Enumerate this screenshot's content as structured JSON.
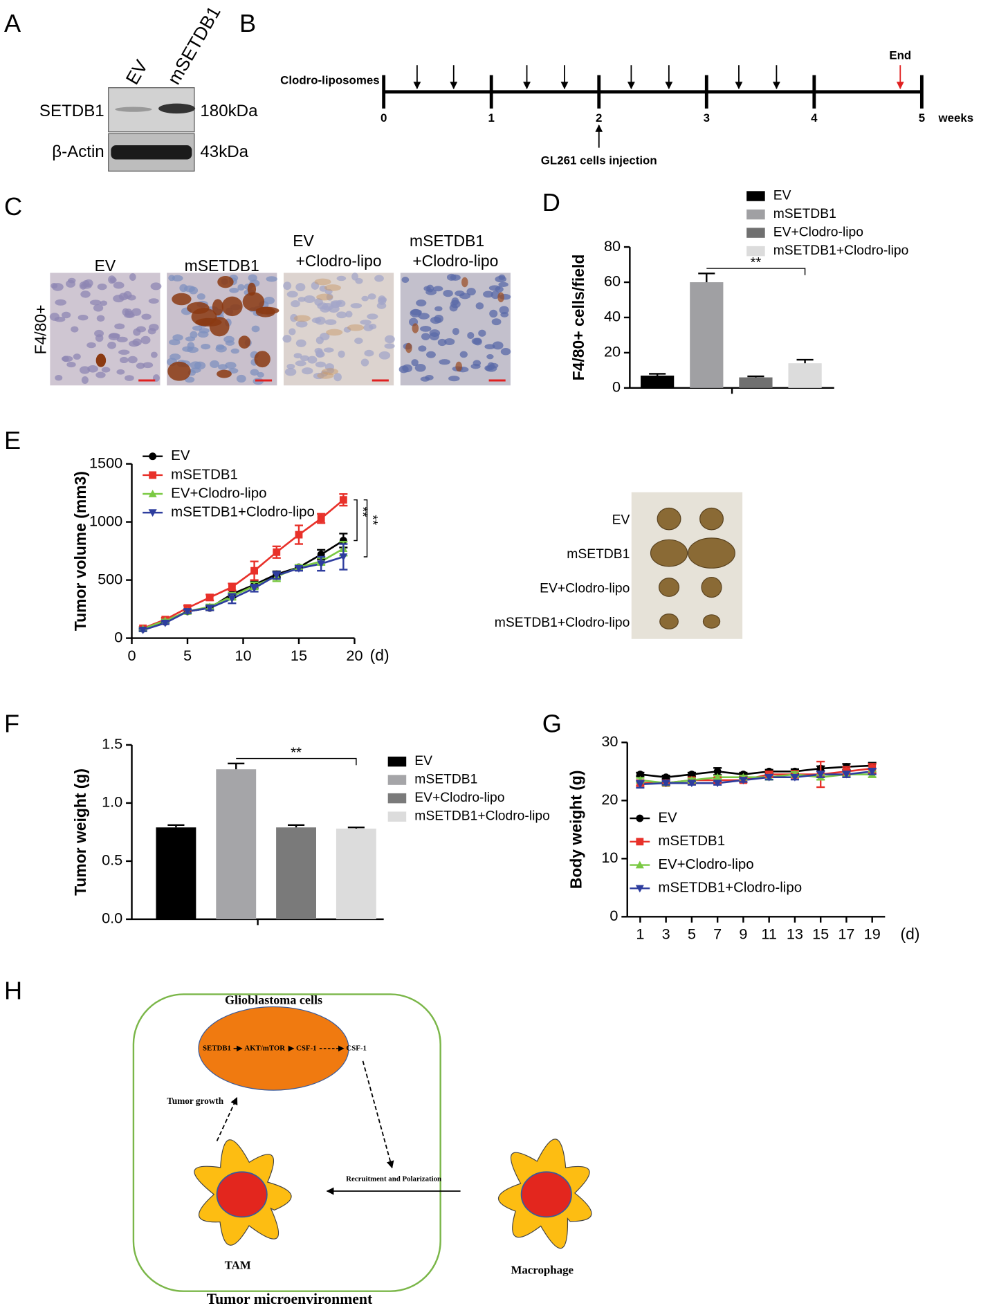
{
  "panel_letters": [
    "A",
    "B",
    "C",
    "D",
    "E",
    "F",
    "G",
    "H"
  ],
  "panel_a": {
    "lanes": [
      "EV",
      "mSETDB1"
    ],
    "rows": [
      {
        "protein": "SETDB1",
        "size": "180kDa"
      },
      {
        "protein": "β-Actin",
        "size": "43kDa"
      }
    ]
  },
  "panel_b": {
    "label": "Clodro-liposomes",
    "ticks": [
      0,
      1,
      2,
      3,
      4,
      5
    ],
    "unit": "weeks",
    "end": "End",
    "end_at": 4.8,
    "injection": "GL261 cells injection",
    "injection_at": 2,
    "doses": [
      0.31,
      0.65,
      1.33,
      1.68,
      2.3,
      2.65,
      3.3,
      3.65
    ]
  },
  "panel_c": {
    "row_label": "F4/80+",
    "columns": [
      [
        "EV"
      ],
      [
        "mSETDB1"
      ],
      [
        "EV",
        "+Clodro-lipo"
      ],
      [
        "mSETDB1",
        "+Clodro-lipo"
      ]
    ]
  },
  "chart_data": [
    {
      "type": "bar",
      "ylabel": "F4/80+ cells/field",
      "ylim": [
        0,
        80
      ],
      "yticks": [
        0,
        20,
        40,
        60,
        80
      ],
      "legend": "top right",
      "annotation": "**",
      "series": [
        {
          "name": "EV",
          "color": "#000000",
          "values": [
            7
          ],
          "errors": [
            1
          ]
        },
        {
          "name": "mSETDB1",
          "color": "#a0a0a3",
          "values": [
            60
          ],
          "errors": [
            5
          ]
        },
        {
          "name": "EV+Clodro-lipo",
          "color": "#707070",
          "values": [
            6
          ],
          "errors": [
            0.6
          ]
        },
        {
          "name": "mSETDB1+Clodro-lipo",
          "color": "#dcdcdc",
          "values": [
            14
          ],
          "errors": [
            2
          ]
        }
      ]
    },
    {
      "type": "line",
      "ylabel": "Tumor volume (mm3)",
      "xlabel": "(d)",
      "x": [
        1,
        3,
        5,
        7,
        9,
        11,
        13,
        15,
        17,
        19
      ],
      "xlim": [
        0,
        20
      ],
      "xticks": [
        0,
        5,
        10,
        15,
        20
      ],
      "ylim": [
        0,
        1500
      ],
      "yticks": [
        0,
        500,
        1000,
        1500
      ],
      "legend": "upper left",
      "annotations": [
        "**",
        "**"
      ],
      "series": [
        {
          "name": "EV",
          "color": "#000000",
          "marker": "circle",
          "values": [
            80,
            140,
            230,
            260,
            380,
            460,
            550,
            610,
            720,
            840
          ],
          "errors": [
            10,
            10,
            15,
            20,
            30,
            30,
            25,
            20,
            40,
            60
          ]
        },
        {
          "name": "mSETDB1",
          "color": "#e8312a",
          "marker": "square",
          "values": [
            85,
            160,
            260,
            350,
            440,
            580,
            740,
            890,
            1030,
            1190
          ],
          "errors": [
            10,
            15,
            20,
            25,
            30,
            80,
            50,
            80,
            40,
            50
          ]
        },
        {
          "name": "EV+Clodro-lipo",
          "color": "#7ac943",
          "marker": "triangle-up",
          "values": [
            80,
            150,
            230,
            270,
            360,
            450,
            530,
            610,
            660,
            770
          ],
          "errors": [
            10,
            10,
            15,
            20,
            30,
            30,
            40,
            20,
            30,
            60
          ]
        },
        {
          "name": "mSETDB1+Clodro-lipo",
          "color": "#2e3d9e",
          "marker": "triangle-down",
          "values": [
            70,
            130,
            230,
            260,
            340,
            430,
            540,
            600,
            640,
            700
          ],
          "errors": [
            10,
            10,
            15,
            20,
            40,
            30,
            30,
            20,
            60,
            110
          ]
        }
      ]
    },
    {
      "type": "bar",
      "ylabel": "Tumor weight (g)",
      "ylim": [
        0,
        1.5
      ],
      "yticks": [
        {
          "value": 0,
          "label": "0.0"
        },
        0.5,
        {
          "value": 1,
          "label": "1.0"
        },
        1.5
      ],
      "legend": "right",
      "annotation": "**",
      "series": [
        {
          "name": "EV",
          "color": "#000000",
          "values": [
            0.79
          ],
          "errors": [
            0.02
          ]
        },
        {
          "name": "mSETDB1",
          "color": "#a5a5a8",
          "values": [
            1.29
          ],
          "errors": [
            0.05
          ]
        },
        {
          "name": "EV+Clodro-lipo",
          "color": "#7a7a7a",
          "values": [
            0.79
          ],
          "errors": [
            0.02
          ]
        },
        {
          "name": "mSETDB1+Clodro-lipo",
          "color": "#dcdcdc",
          "values": [
            0.78
          ],
          "errors": [
            0.01
          ]
        }
      ]
    },
    {
      "type": "line",
      "ylabel": "Body weight (g)",
      "xlabel": "(d)",
      "x": [
        1,
        3,
        5,
        7,
        9,
        11,
        13,
        15,
        17,
        19
      ],
      "xlim": [
        0,
        20
      ],
      "xticks": [
        1,
        3,
        5,
        7,
        9,
        11,
        13,
        15,
        17,
        19
      ],
      "ylim": [
        0,
        30
      ],
      "yticks": [
        0,
        10,
        20,
        30
      ],
      "legend": "lower left",
      "series": [
        {
          "name": "EV",
          "color": "#000000",
          "marker": "circle",
          "values": [
            24.5,
            24,
            24.5,
            25,
            24.5,
            25,
            25,
            25.5,
            25.8,
            26
          ],
          "errors": [
            0.3,
            0.3,
            0.3,
            0.6,
            0.3,
            0.3,
            0.4,
            0.4,
            0.5,
            0.5
          ]
        },
        {
          "name": "mSETDB1",
          "color": "#e8312a",
          "marker": "square",
          "values": [
            23,
            23,
            23.5,
            23.5,
            23.5,
            24.5,
            24.5,
            24.5,
            25,
            25.5
          ],
          "errors": [
            0.5,
            0.4,
            0.4,
            0.4,
            0.4,
            0.5,
            0.6,
            2.2,
            0.8,
            0.8
          ]
        },
        {
          "name": "EV+Clodro-lipo",
          "color": "#7ac943",
          "marker": "triangle-up",
          "values": [
            23.5,
            23,
            23.5,
            24,
            24,
            24,
            24.5,
            24,
            24.5,
            24.5
          ],
          "errors": [
            0.4,
            0.3,
            0.3,
            0.3,
            0.3,
            0.4,
            0.4,
            0.4,
            0.4,
            0.5
          ]
        },
        {
          "name": "mSETDB1+Clodro-lipo",
          "color": "#2e3d9e",
          "marker": "triangle-down",
          "values": [
            22.8,
            23,
            23,
            23,
            23.5,
            24,
            24,
            24.5,
            24.5,
            25
          ],
          "errors": [
            0.6,
            0.3,
            0.3,
            0.3,
            0.3,
            0.4,
            0.4,
            0.5,
            0.5,
            0.5
          ]
        }
      ]
    }
  ],
  "panel_e_photo": {
    "rows": [
      "EV",
      "mSETDB1",
      "EV+Clodro-lipo",
      "mSETDB1+Clodro-lipo"
    ]
  },
  "panel_h": {
    "tumor": "Glioblastoma cells",
    "pathway": [
      "SETDB1",
      "AKT/mTOR",
      "CSF-1",
      "CSF-1"
    ],
    "growth": "Tumor growth",
    "recruit": "Recruitment and Polarization",
    "tam": "TAM",
    "macrophage": "Macrophage",
    "environment": "Tumor microenvironment"
  }
}
